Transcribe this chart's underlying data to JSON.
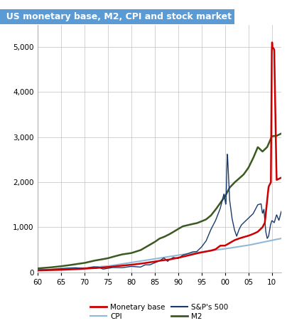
{
  "title": "US monetary base, M2, CPI and stock market",
  "title_bg_color": "#5b9bd5",
  "title_text_color": "#ffffff",
  "ylim": [
    0,
    5500
  ],
  "yticks": [
    0,
    1000,
    2000,
    3000,
    4000,
    5000
  ],
  "xtick_positions": [
    60,
    65,
    70,
    75,
    80,
    85,
    90,
    95,
    100,
    105,
    110
  ],
  "xtick_labels": [
    "60",
    "65",
    "70",
    "75",
    "80",
    "85",
    "90",
    "95",
    "00",
    "05",
    "10"
  ],
  "grid_color": "#c0c0c0",
  "bg_color": "#ffffff",
  "colors": {
    "monetary_base": "#cc0000",
    "cpi": "#92b8d8",
    "sp500": "#1a3a6b",
    "m2": "#3a5a20"
  },
  "line_widths": {
    "monetary_base": 1.8,
    "cpi": 1.5,
    "sp500": 1.0,
    "m2": 1.8
  },
  "legend": {
    "monetary_base": "Monetary base",
    "cpi": "CPI",
    "sp500": "S&P's 500",
    "m2": "M2"
  },
  "monetary_base_years": [
    1960,
    1962,
    1964,
    1966,
    1968,
    1970,
    1972,
    1974,
    1975,
    1976,
    1978,
    1980,
    1982,
    1984,
    1985,
    1986,
    1988,
    1990,
    1992,
    1994,
    1995,
    1996,
    1997,
    1998,
    1999,
    2000,
    2001,
    2002,
    2003,
    2004,
    2005,
    2006,
    2007,
    2007.5,
    2008,
    2008.5,
    2009,
    2009.3,
    2009.8,
    2010.0,
    2010.1,
    2010.5,
    2011,
    2012
  ],
  "monetary_base_vals": [
    40,
    45,
    50,
    58,
    65,
    80,
    90,
    105,
    115,
    125,
    145,
    165,
    190,
    220,
    235,
    255,
    280,
    320,
    370,
    420,
    440,
    460,
    480,
    510,
    590,
    590,
    650,
    710,
    750,
    780,
    810,
    850,
    900,
    950,
    1000,
    1100,
    1600,
    1900,
    2000,
    5200,
    5000,
    4950,
    2050,
    2100
  ],
  "cpi_years": [
    1960,
    1965,
    1970,
    1975,
    1980,
    1985,
    1990,
    1995,
    2000,
    2005,
    2010,
    2012
  ],
  "cpi_vals": [
    50,
    70,
    95,
    135,
    215,
    295,
    380,
    450,
    520,
    600,
    710,
    750
  ],
  "sp500_years": [
    1960,
    1962,
    1964,
    1966,
    1968,
    1970,
    1972,
    1973,
    1974,
    1975,
    1976,
    1978,
    1980,
    1982,
    1983,
    1984,
    1985,
    1986,
    1987,
    1987.8,
    1988,
    1989,
    1990,
    1991,
    1992,
    1993,
    1994,
    1995,
    1996,
    1997,
    1998,
    1999,
    1999.8,
    2000.2,
    2000.5,
    2001,
    2001.5,
    2002,
    2002.5,
    2003,
    2003.5,
    2004,
    2005,
    2006,
    2007,
    2007.7,
    2008,
    2008.3,
    2008.7,
    2009,
    2009.3,
    2009.7,
    2010,
    2010.5,
    2011,
    2011.5,
    2012
  ],
  "sp500_vals": [
    55,
    55,
    75,
    90,
    100,
    85,
    120,
    115,
    70,
    85,
    105,
    100,
    130,
    115,
    165,
    165,
    210,
    250,
    320,
    240,
    265,
    330,
    305,
    380,
    410,
    450,
    460,
    560,
    700,
    950,
    1150,
    1420,
    1750,
    1480,
    2700,
    1600,
    1200,
    950,
    800,
    950,
    1050,
    1100,
    1200,
    1300,
    1500,
    1520,
    1300,
    1400,
    900,
    750,
    800,
    1050,
    1150,
    1100,
    1280,
    1150,
    1350
  ],
  "m2_years": [
    1960,
    1962,
    1964,
    1966,
    1968,
    1970,
    1972,
    1974,
    1975,
    1976,
    1978,
    1980,
    1982,
    1983,
    1984,
    1985,
    1986,
    1987,
    1988,
    1989,
    1990,
    1991,
    1992,
    1993,
    1994,
    1995,
    1996,
    1997,
    1998,
    1999,
    2000,
    2001,
    2002,
    2003,
    2004,
    2005,
    2006,
    2007,
    2008,
    2009,
    2010,
    2011,
    2012
  ],
  "m2_vals": [
    85,
    100,
    120,
    145,
    175,
    205,
    255,
    290,
    310,
    340,
    395,
    425,
    490,
    550,
    610,
    670,
    745,
    785,
    835,
    895,
    960,
    1020,
    1045,
    1070,
    1090,
    1130,
    1175,
    1260,
    1390,
    1540,
    1680,
    1880,
    1990,
    2080,
    2175,
    2320,
    2530,
    2780,
    2680,
    2780,
    3020,
    3030,
    3080
  ]
}
